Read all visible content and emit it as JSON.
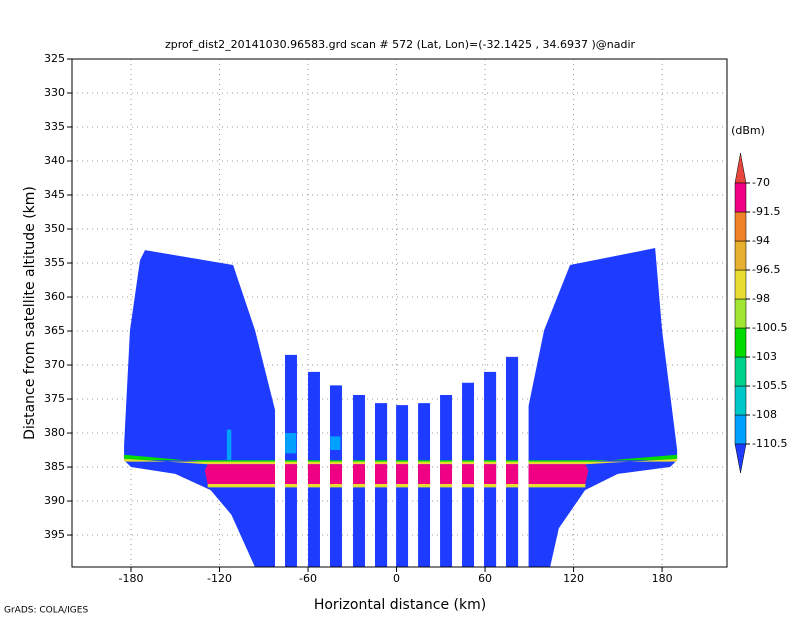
{
  "chart_data": {
    "type": "field",
    "title": "zprof_dist2_20141030.96583.grd  scan # 572  (Lat, Lon)=(-32.1425 , 34.6937 )@nadir",
    "xlabel": "Horizontal distance (km)",
    "ylabel": "Distance from satellite altitude (km)",
    "footer": "GrADS: COLA/IGES",
    "xlim": [
      -220,
      224
    ],
    "ylim": [
      325,
      399.7
    ],
    "y_reversed": true,
    "grid": true,
    "xticks": [
      -180,
      -120,
      -60,
      0,
      60,
      120,
      180
    ],
    "yticks": [
      325,
      330,
      335,
      340,
      345,
      350,
      355,
      360,
      365,
      370,
      375,
      380,
      385,
      390,
      395
    ],
    "colorbar": {
      "label": "(dBm)",
      "levels": [
        -110.5,
        -108,
        -105.5,
        -103,
        -100.5,
        -98,
        -96.5,
        -94,
        -91.5,
        -70
      ],
      "colors": [
        "#1e3cff",
        "#00a0ff",
        "#00c8c8",
        "#00d28c",
        "#00dc00",
        "#a0e632",
        "#e6dc32",
        "#e6af2d",
        "#f08228",
        "#f00082",
        "#e6463c"
      ]
    },
    "field": {
      "regions": [
        {
          "points": [
            [
              -170.5,
              353.1
            ],
            [
              -110.8,
              355.3
            ],
            [
              -95.9,
              364.9
            ],
            [
              -82.4,
              376.6
            ],
            [
              -82.4,
              399.7
            ],
            [
              -96,
              399.7
            ],
            [
              -112,
              392
            ],
            [
              -126,
              388.4
            ],
            [
              -150,
              386
            ],
            [
              -180,
              385
            ],
            [
              -184.7,
              384
            ],
            [
              -184.7,
              381.8
            ],
            [
              -180.7,
              364.9
            ],
            [
              -173.9,
              354.6
            ]
          ],
          "value": -115
        },
        {
          "points": [
            [
              -75.6,
              368.5
            ],
            [
              -67.5,
              368.5
            ],
            [
              -67.5,
              399.7
            ],
            [
              -75.6,
              399.7
            ]
          ],
          "value": -115
        },
        {
          "points": [
            [
              -60,
              371
            ],
            [
              -51.9,
              371
            ],
            [
              -51.9,
              399.7
            ],
            [
              -60,
              399.7
            ]
          ],
          "value": -115
        },
        {
          "points": [
            [
              -45.1,
              373
            ],
            [
              -37,
              373
            ],
            [
              -37,
              399.7
            ],
            [
              -45.1,
              399.7
            ]
          ],
          "value": -115
        },
        {
          "points": [
            [
              -29.5,
              374.4
            ],
            [
              -21.4,
              374.4
            ],
            [
              -21.4,
              399.7
            ],
            [
              -29.5,
              399.7
            ]
          ],
          "value": -115
        },
        {
          "points": [
            [
              -14.6,
              375.6
            ],
            [
              -6.4,
              375.6
            ],
            [
              -6.4,
              399.7
            ],
            [
              -14.6,
              399.7
            ]
          ],
          "value": -115
        },
        {
          "points": [
            [
              -0.3,
              375.9
            ],
            [
              7.8,
              375.9
            ],
            [
              7.8,
              399.7
            ],
            [
              -0.3,
              399.7
            ]
          ],
          "value": -115
        },
        {
          "points": [
            [
              14.6,
              375.6
            ],
            [
              22.7,
              375.6
            ],
            [
              22.7,
              399.7
            ],
            [
              14.6,
              399.7
            ]
          ],
          "value": -115
        },
        {
          "points": [
            [
              29.5,
              374.4
            ],
            [
              37.6,
              374.4
            ],
            [
              37.6,
              399.7
            ],
            [
              29.5,
              399.7
            ]
          ],
          "value": -115
        },
        {
          "points": [
            [
              44.4,
              372.6
            ],
            [
              52.5,
              372.6
            ],
            [
              52.5,
              399.7
            ],
            [
              44.4,
              399.7
            ]
          ],
          "value": -115
        },
        {
          "points": [
            [
              59.3,
              371
            ],
            [
              67.5,
              371
            ],
            [
              67.5,
              399.7
            ],
            [
              59.3,
              399.7
            ]
          ],
          "value": -115
        },
        {
          "points": [
            [
              74.2,
              368.8
            ],
            [
              82.4,
              368.8
            ],
            [
              82.4,
              399.7
            ],
            [
              74.2,
              399.7
            ]
          ],
          "value": -115
        },
        {
          "points": [
            [
              117.6,
              355.3
            ],
            [
              175.3,
              352.8
            ],
            [
              180,
              364.9
            ],
            [
              190.2,
              382.5
            ],
            [
              190.2,
              384
            ],
            [
              185.4,
              385
            ],
            [
              150,
              386
            ],
            [
              127.8,
              388.4
            ],
            [
              110,
              394
            ],
            [
              104.1,
              399.7
            ],
            [
              89.5,
              399.7
            ],
            [
              89.5,
              376
            ],
            [
              100,
              364.9
            ]
          ],
          "value": -115
        }
      ],
      "overlays": [
        {
          "points": [
            [
              -184.7,
              383.2
            ],
            [
              -128,
              384.3
            ],
            [
              128,
              384.3
            ],
            [
              190.2,
              383.2
            ],
            [
              190.2,
              384
            ],
            [
              -184.7,
              384
            ]
          ],
          "value": -101
        },
        {
          "points": [
            [
              -184.7,
              383.8
            ],
            [
              -128,
              384.6
            ],
            [
              128,
              384.6
            ],
            [
              190.2,
              383.8
            ],
            [
              190.2,
              384.2
            ],
            [
              -184.7,
              384.2
            ]
          ],
          "value": -97
        },
        {
          "points": [
            [
              -128,
              384.6
            ],
            [
              128,
              384.6
            ],
            [
              130,
              385.5
            ],
            [
              128,
              387.5
            ],
            [
              -128,
              387.5
            ],
            [
              -130,
              385.5
            ]
          ],
          "value": -85
        },
        {
          "points": [
            [
              -128,
              387.5
            ],
            [
              128,
              387.5
            ],
            [
              128,
              388
            ],
            [
              -128,
              388
            ]
          ],
          "value": -97.5
        },
        {
          "points": [
            [
              -115,
              379.5
            ],
            [
              -112,
              379.5
            ],
            [
              -112,
              384
            ],
            [
              -115,
              384
            ]
          ],
          "value": -109
        },
        {
          "points": [
            [
              -75.6,
              380
            ],
            [
              -68,
              380
            ],
            [
              -68,
              383
            ],
            [
              -75.6,
              383
            ]
          ],
          "value": -109
        },
        {
          "points": [
            [
              -45,
              380.5
            ],
            [
              -38,
              380.5
            ],
            [
              -38,
              382.5
            ],
            [
              -45,
              382.5
            ]
          ],
          "value": -109
        }
      ]
    }
  }
}
